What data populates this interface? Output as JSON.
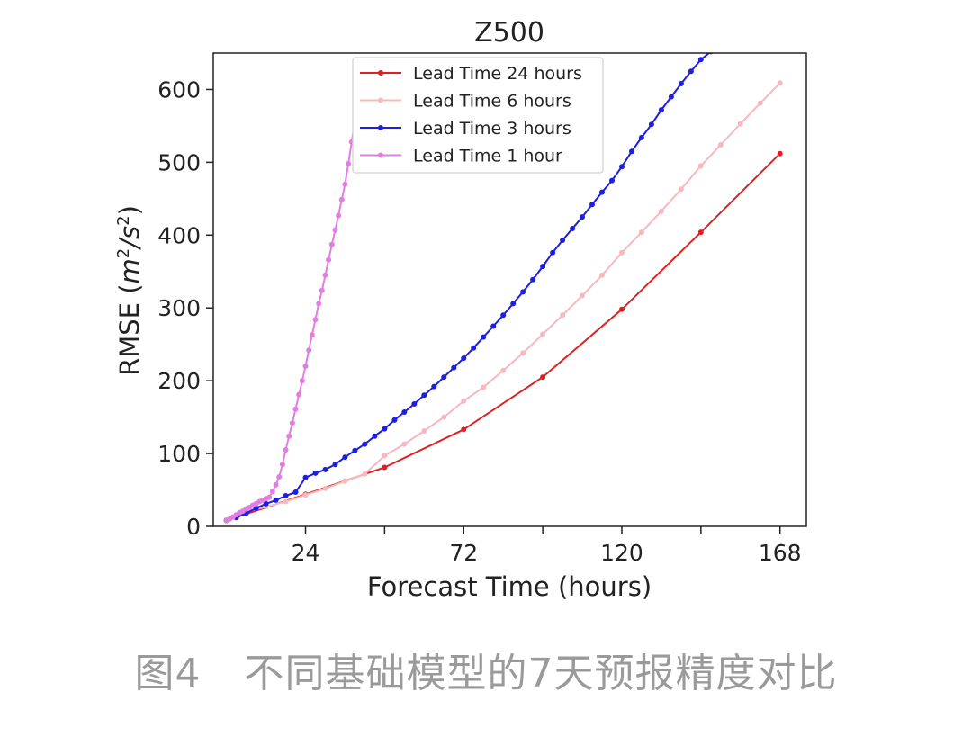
{
  "chart_data": {
    "type": "line",
    "title": "Z500",
    "xlabel": "Forecast Time (hours)",
    "ylabel": "RMSE (m²/s²)",
    "ylabel_parts": {
      "main": "RMSE (",
      "m": "m",
      "exp1": "2",
      "slash": "/s",
      "exp2": "2",
      "close": ")"
    },
    "xlim": [
      -4,
      176
    ],
    "ylim": [
      0,
      650
    ],
    "xticks": [
      24,
      72,
      120,
      168
    ],
    "xtick_labels": [
      "24",
      "72",
      "120",
      "168"
    ],
    "xminor_ticks": [
      48,
      96,
      144
    ],
    "yticks": [
      0,
      100,
      200,
      300,
      400,
      500,
      600
    ],
    "ytick_labels": [
      "0",
      "100",
      "200",
      "300",
      "400",
      "500",
      "600"
    ],
    "grid": false,
    "legend_position": "upper-center",
    "series": [
      {
        "name": "Lead Time 24 hours",
        "color": "#e02020",
        "x": [
          0,
          24,
          48,
          72,
          96,
          120,
          144,
          168
        ],
        "y": [
          8,
          44,
          81,
          133,
          205,
          298,
          404,
          512
        ]
      },
      {
        "name": "Lead Time 6 hours",
        "color": "#f7b8bf",
        "x": [
          0,
          6,
          12,
          18,
          24,
          30,
          36,
          42,
          48,
          54,
          60,
          66,
          72,
          78,
          84,
          90,
          96,
          102,
          108,
          114,
          120,
          126,
          132,
          138,
          144,
          150,
          156,
          162,
          168
        ],
        "y": [
          9,
          20,
          27,
          34,
          43,
          52,
          62,
          72,
          97,
          113,
          131,
          150,
          172,
          191,
          214,
          238,
          264,
          290,
          317,
          345,
          376,
          404,
          433,
          463,
          495,
          524,
          553,
          581,
          609
        ]
      },
      {
        "name": "Lead Time 3 hours",
        "color": "#1e1ee0",
        "x": [
          0,
          3,
          6,
          9,
          12,
          15,
          18,
          21,
          24,
          27,
          30,
          33,
          36,
          39,
          42,
          45,
          48,
          51,
          54,
          57,
          60,
          63,
          66,
          69,
          72,
          75,
          78,
          81,
          84,
          87,
          90,
          93,
          96,
          99,
          102,
          105,
          108,
          111,
          114,
          117,
          120,
          123,
          126,
          129,
          132,
          135,
          138,
          141,
          144,
          147,
          150
        ],
        "y": [
          8,
          12,
          18,
          25,
          31,
          36,
          42,
          47,
          67,
          73,
          78,
          85,
          95,
          104,
          113,
          124,
          134,
          146,
          157,
          168,
          180,
          192,
          205,
          218,
          231,
          245,
          260,
          275,
          290,
          306,
          322,
          339,
          357,
          376,
          393,
          409,
          425,
          442,
          459,
          475,
          494,
          515,
          534,
          552,
          572,
          590,
          608,
          625,
          641,
          652,
          660
        ]
      },
      {
        "name": "Lead Time 1 hour",
        "color": "#e27ee2",
        "x": [
          0,
          1,
          2,
          3,
          4,
          5,
          6,
          7,
          8,
          9,
          10,
          11,
          12,
          13,
          14,
          15,
          16,
          17,
          18,
          19,
          20,
          21,
          22,
          23,
          24,
          25,
          26,
          27,
          28,
          29,
          30,
          31,
          32,
          33,
          34,
          35,
          36,
          37,
          38,
          39
        ],
        "y": [
          8,
          10,
          13,
          16,
          19,
          21,
          24,
          26,
          29,
          31,
          34,
          36,
          38,
          40,
          48,
          57,
          68,
          85,
          105,
          124,
          142,
          161,
          181,
          200,
          220,
          242,
          263,
          284,
          306,
          324,
          345,
          366,
          387,
          407,
          427,
          449,
          470,
          498,
          528,
          558
        ]
      }
    ]
  },
  "caption": {
    "figure_number": "图4",
    "text": "不同基础模型的7天预报精度对比"
  }
}
